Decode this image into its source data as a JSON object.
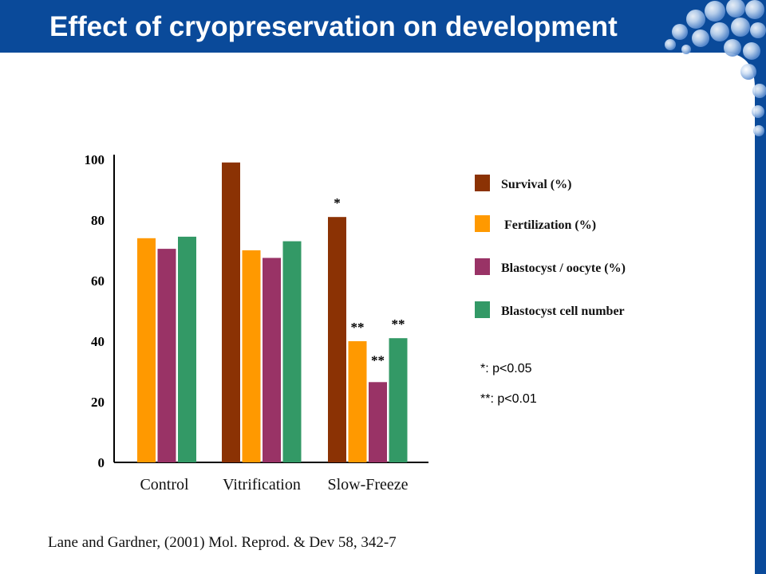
{
  "slide": {
    "title": "Effect of cryopreservation on development",
    "citation": "Lane and Gardner, (2001) Mol. Reprod. & Dev 58, 342-7"
  },
  "colors": {
    "header_blue": "#0a4a9a",
    "survival": "#8b3204",
    "fertilization": "#ff9900",
    "blastocyst_oocyte": "#993366",
    "cell_number": "#339966"
  },
  "chart_data": {
    "type": "bar",
    "categories": [
      "Control",
      "Vitrification",
      "Slow-Freeze"
    ],
    "series": [
      {
        "name": "Survival (%)",
        "values": [
          null,
          99,
          81
        ],
        "marks": [
          "",
          "",
          "*"
        ]
      },
      {
        "name": "Fertilization (%)",
        "values": [
          74,
          70,
          40
        ],
        "marks": [
          "",
          "",
          "**"
        ]
      },
      {
        "name": "Blastocyst / oocyte (%)",
        "values": [
          70.5,
          67.5,
          26.5
        ],
        "marks": [
          "",
          "",
          "**"
        ]
      },
      {
        "name": "Blastocyst cell number",
        "values": [
          74.5,
          73,
          41
        ],
        "marks": [
          "",
          "",
          "**"
        ]
      }
    ],
    "ylim": [
      0,
      100
    ],
    "yticks": [
      0,
      20,
      40,
      60,
      80,
      100
    ],
    "grid": false,
    "legend": "right",
    "notes": [
      "*: p<0.05",
      "**: p<0.01"
    ]
  }
}
